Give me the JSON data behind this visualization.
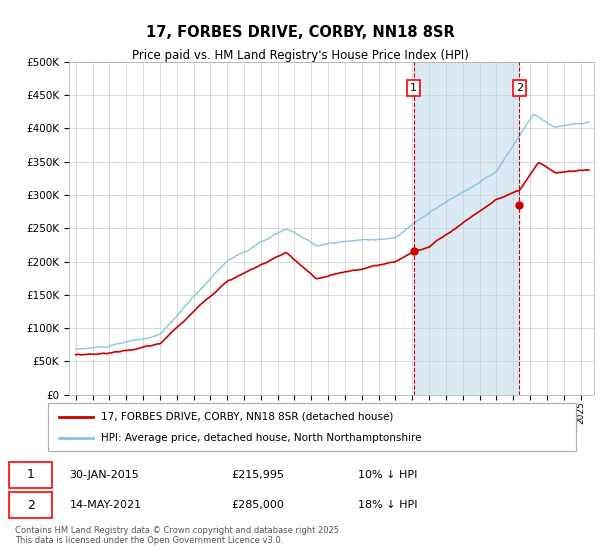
{
  "title": "17, FORBES DRIVE, CORBY, NN18 8SR",
  "subtitle": "Price paid vs. HM Land Registry's House Price Index (HPI)",
  "legend_line1": "17, FORBES DRIVE, CORBY, NN18 8SR (detached house)",
  "legend_line2": "HPI: Average price, detached house, North Northamptonshire",
  "annotation1_date": "30-JAN-2015",
  "annotation1_price": "£215,995",
  "annotation1_hpi": "10% ↓ HPI",
  "annotation2_date": "14-MAY-2021",
  "annotation2_price": "£285,000",
  "annotation2_hpi": "18% ↓ HPI",
  "footer": "Contains HM Land Registry data © Crown copyright and database right 2025.\nThis data is licensed under the Open Government Licence v3.0.",
  "hpi_color": "#89c4e0",
  "price_color": "#cc0000",
  "marker_color": "#cc0000",
  "vline_color": "#cc0000",
  "shading_color": "#daeaf5",
  "background_color": "#ffffff",
  "grid_color": "#cccccc",
  "ylim": [
    0,
    500000
  ],
  "yticks": [
    0,
    50000,
    100000,
    150000,
    200000,
    250000,
    300000,
    350000,
    400000,
    450000,
    500000
  ],
  "year_start": 1995,
  "year_end": 2025,
  "transaction1_year": 2015.08,
  "transaction2_year": 2021.37,
  "transaction1_price": 215995,
  "transaction2_price": 285000
}
